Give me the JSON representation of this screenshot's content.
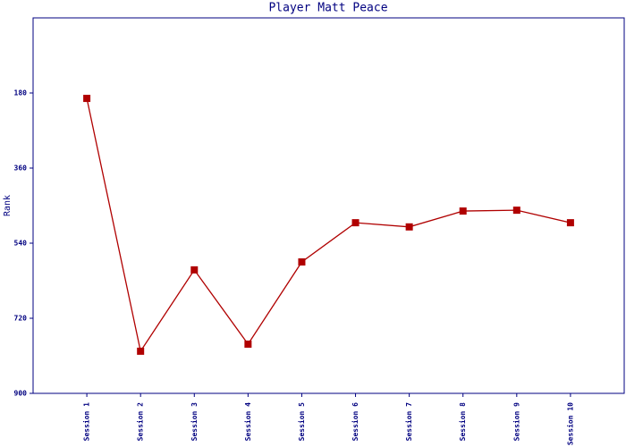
{
  "chart_data": {
    "type": "line",
    "title": "Player Matt Peace",
    "y_label": "Rank",
    "categories": [
      "Session 1",
      "Session 2",
      "Session 3",
      "Session 4",
      "Session 5",
      "Session 6",
      "Session 7",
      "Session 8",
      "Session 9",
      "Session 10"
    ],
    "series": [
      {
        "name": "Rank",
        "color": "#b00000",
        "values": [
          193,
          799,
          604,
          782,
          585,
          491,
          501,
          463,
          461,
          491
        ]
      }
    ],
    "ylim": [
      0,
      900
    ],
    "y_inverted": true,
    "yticks": [
      180,
      360,
      540,
      720,
      900
    ],
    "grid": false
  }
}
